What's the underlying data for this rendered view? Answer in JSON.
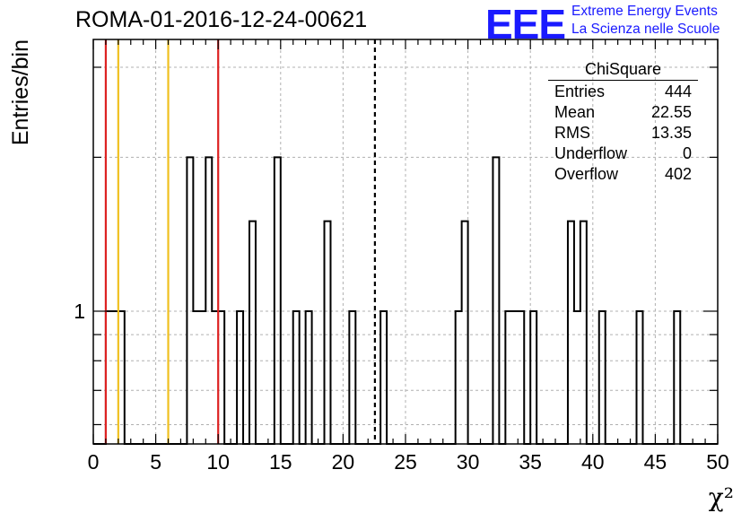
{
  "title": "ROMA-01-2016-12-24-00621",
  "logo": {
    "mark": "EEE",
    "line1": "Extreme Energy Events",
    "line2": "La Scienza nelle Scuole",
    "color": "#1a1aff"
  },
  "stats": {
    "name": "ChiSquare",
    "rows": [
      {
        "label": "Entries",
        "value": "444"
      },
      {
        "label": "Mean",
        "value": "22.55"
      },
      {
        "label": "RMS",
        "value": "13.35"
      },
      {
        "label": "Underflow",
        "value": "0"
      },
      {
        "label": "Overflow",
        "value": "402"
      }
    ]
  },
  "chart_data": {
    "type": "bar",
    "style": "step-histogram",
    "xlabel": "χ²",
    "ylabel": "Entries/bin",
    "xlim": [
      0,
      50
    ],
    "ylim": [
      0.55,
      3.4
    ],
    "yscale": "log",
    "grid": true,
    "x_ticks": [
      "0",
      "5",
      "10",
      "15",
      "20",
      "25",
      "30",
      "35",
      "40",
      "45",
      "50"
    ],
    "y_ticks": [
      "1"
    ],
    "bin_width": 0.5,
    "bins": [
      {
        "x": 1.0,
        "count": 1
      },
      {
        "x": 1.5,
        "count": 1
      },
      {
        "x": 2.0,
        "count": 1
      },
      {
        "x": 7.5,
        "count": 2
      },
      {
        "x": 8.0,
        "count": 1
      },
      {
        "x": 8.5,
        "count": 1
      },
      {
        "x": 9.0,
        "count": 2
      },
      {
        "x": 9.5,
        "count": 1
      },
      {
        "x": 10.0,
        "count": 1
      },
      {
        "x": 11.5,
        "count": 1
      },
      {
        "x": 12.5,
        "count": 1.5
      },
      {
        "x": 14.5,
        "count": 2
      },
      {
        "x": 16.0,
        "count": 1
      },
      {
        "x": 17.0,
        "count": 1
      },
      {
        "x": 18.5,
        "count": 1.5
      },
      {
        "x": 20.5,
        "count": 1
      },
      {
        "x": 23.0,
        "count": 1
      },
      {
        "x": 29.0,
        "count": 1
      },
      {
        "x": 29.5,
        "count": 1.5
      },
      {
        "x": 32.0,
        "count": 2
      },
      {
        "x": 33.0,
        "count": 1
      },
      {
        "x": 33.5,
        "count": 1
      },
      {
        "x": 34.0,
        "count": 1
      },
      {
        "x": 35.0,
        "count": 1
      },
      {
        "x": 38.0,
        "count": 1.5
      },
      {
        "x": 38.5,
        "count": 1
      },
      {
        "x": 39.0,
        "count": 1.5
      },
      {
        "x": 40.5,
        "count": 1
      },
      {
        "x": 43.5,
        "count": 1
      },
      {
        "x": 46.5,
        "count": 1
      }
    ],
    "vertical_lines": [
      {
        "x": 1.0,
        "color": "#dd2222",
        "style": "solid"
      },
      {
        "x": 2.0,
        "color": "#f0c020",
        "style": "solid"
      },
      {
        "x": 6.0,
        "color": "#f0c020",
        "style": "solid"
      },
      {
        "x": 10.0,
        "color": "#dd2222",
        "style": "solid"
      },
      {
        "x": 22.55,
        "color": "#000000",
        "style": "dashed"
      }
    ]
  }
}
